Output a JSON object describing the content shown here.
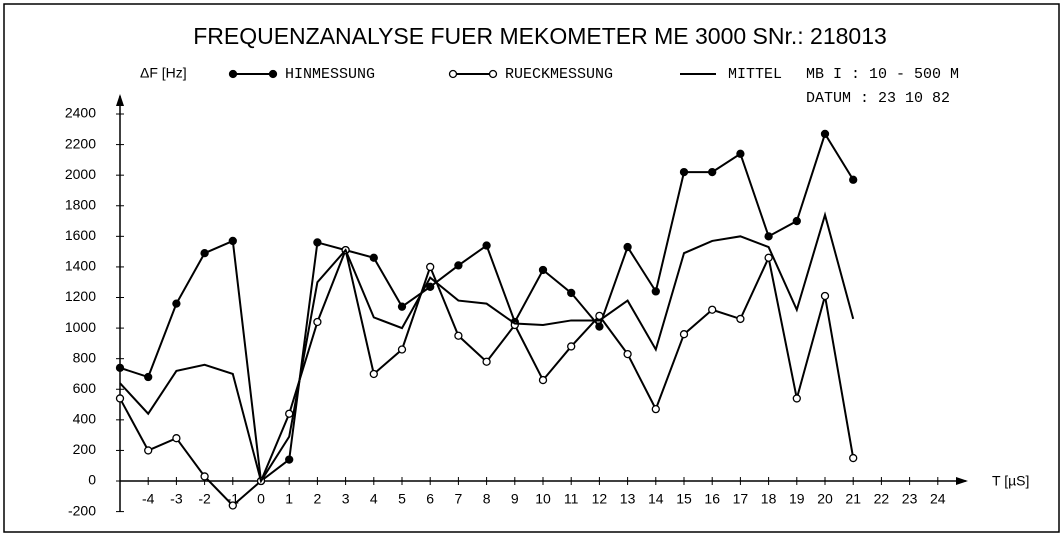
{
  "chart_data": {
    "type": "line",
    "title": "FREQUENZANALYSE  FUER  MEKOMETER  ME 3000  SNr.: 218013",
    "y_label": "ΔF [Hz]",
    "x_label": "T [µS]",
    "annotations": [
      "MB I : 10 - 500 M",
      "DATUM : 23 10 82"
    ],
    "x": [
      -5,
      -4,
      -3,
      -2,
      -1,
      0,
      1,
      2,
      3,
      4,
      5,
      6,
      7,
      8,
      9,
      10,
      11,
      12,
      13,
      14,
      15,
      16,
      17,
      18,
      19,
      20,
      21
    ],
    "series": [
      {
        "name": "HINMESSUNG",
        "color": "#000000",
        "marker": "filled",
        "values": [
          740,
          680,
          1160,
          1490,
          1570,
          0,
          140,
          1560,
          1510,
          1460,
          1140,
          1270,
          1410,
          1540,
          1040,
          1380,
          1230,
          1010,
          1530,
          1240,
          2020,
          2020,
          2140,
          1600,
          1700,
          2270,
          1970
        ]
      },
      {
        "name": "RUECKMESSUNG",
        "color": "#000000",
        "marker": "open",
        "values": [
          540,
          200,
          280,
          30,
          -160,
          0,
          440,
          1040,
          1510,
          700,
          860,
          1400,
          950,
          780,
          1020,
          660,
          880,
          1080,
          830,
          470,
          960,
          1120,
          1060,
          1460,
          540,
          1210,
          150
        ]
      },
      {
        "name": "MITTEL",
        "color": "#000000",
        "marker": "none",
        "values": [
          640,
          440,
          720,
          760,
          700,
          0,
          290,
          1300,
          1510,
          1070,
          1000,
          1330,
          1180,
          1160,
          1030,
          1020,
          1050,
          1050,
          1180,
          860,
          1490,
          1570,
          1600,
          1530,
          1120,
          1740,
          1060
        ]
      }
    ],
    "xlim": [
      -5,
      25
    ],
    "xticks": [
      -4,
      -3,
      -2,
      -1,
      0,
      1,
      2,
      3,
      4,
      5,
      6,
      7,
      8,
      9,
      10,
      11,
      12,
      13,
      14,
      15,
      16,
      17,
      18,
      19,
      20,
      21,
      22,
      23,
      24
    ],
    "ylim": [
      -200,
      2400
    ],
    "yticks": [
      -200,
      0,
      200,
      400,
      600,
      800,
      1000,
      1200,
      1400,
      1600,
      1800,
      2000,
      2200,
      2400
    ],
    "grid": false
  }
}
